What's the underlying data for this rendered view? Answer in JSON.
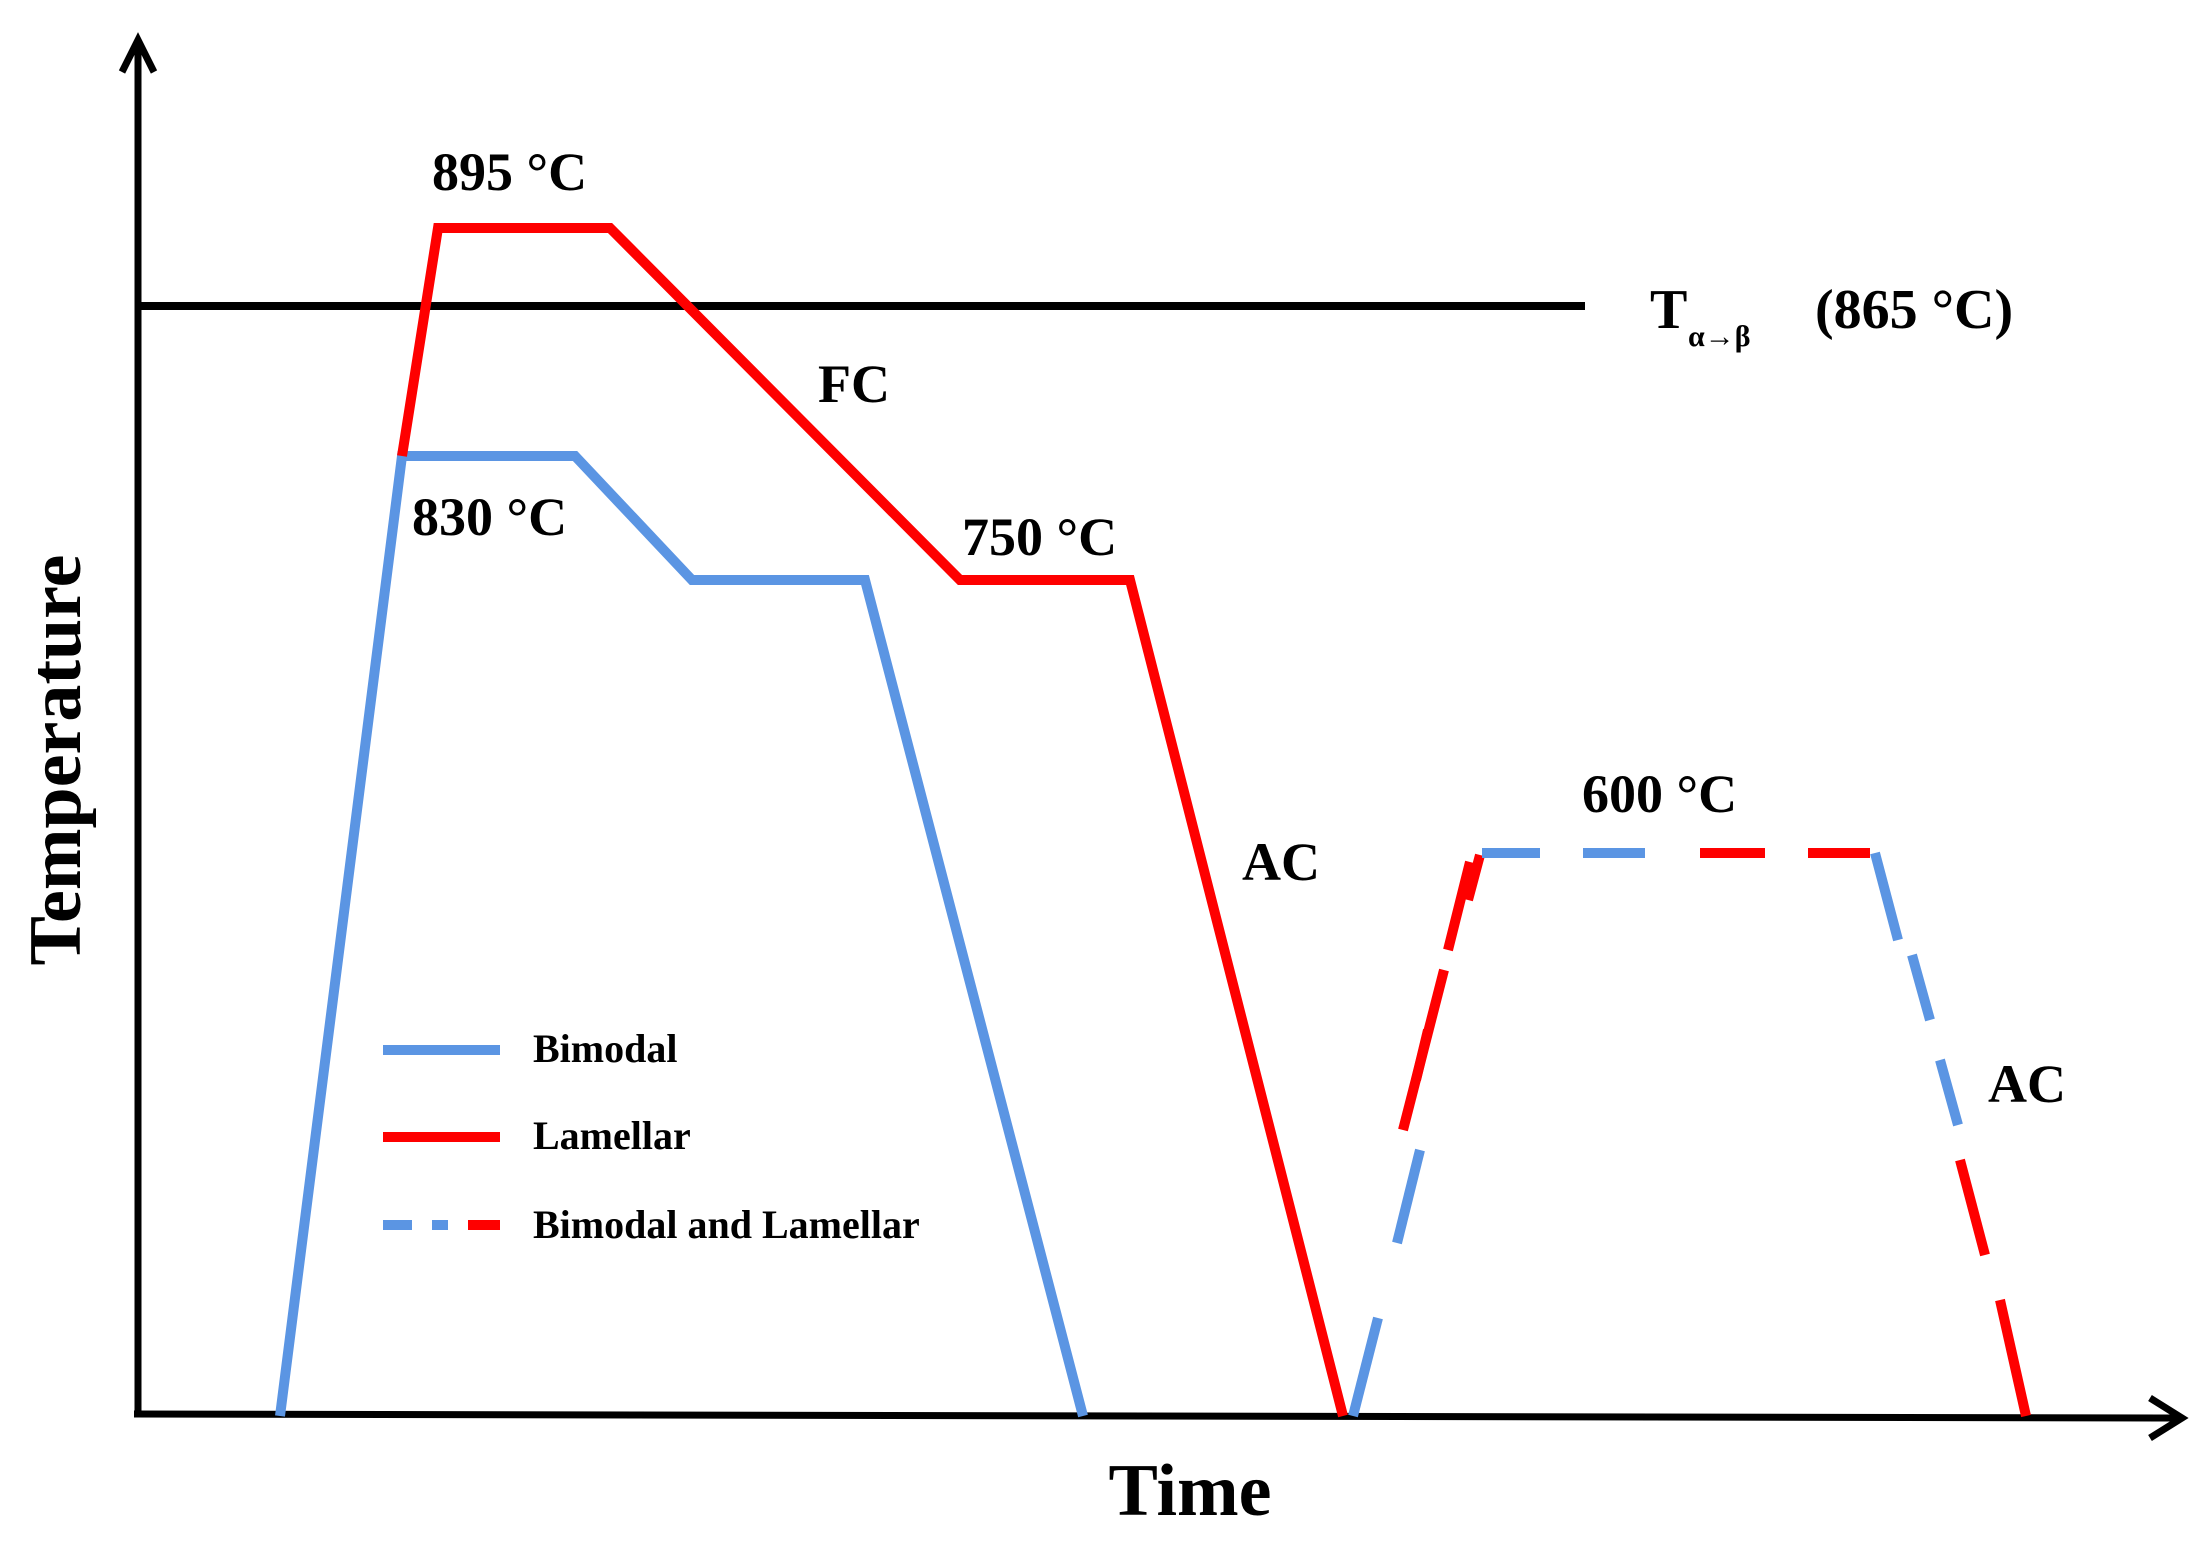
{
  "axes": {
    "y_label": "Temperature",
    "x_label": "Time"
  },
  "transus": {
    "symbol": "T",
    "subscript": "α→β",
    "value_text": "(865 °C)"
  },
  "annotations": {
    "t895": "895 °C",
    "t830": "830 °C",
    "t750": "750 °C",
    "t600": "600 °C",
    "fc": "FC",
    "ac1": "AC",
    "ac2": "AC"
  },
  "legend": {
    "items": [
      {
        "label": "Bimodal",
        "style": "solid-blue"
      },
      {
        "label": "Lamellar",
        "style": "solid-red"
      },
      {
        "label": "Bimodal and Lamellar",
        "style": "dashed-blue-red"
      }
    ]
  },
  "colors": {
    "blue": "#5b95e3",
    "red": "#fe0000",
    "axis": "#000000"
  }
}
